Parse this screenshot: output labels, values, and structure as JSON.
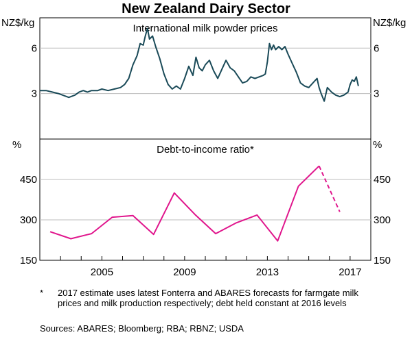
{
  "title": "New Zealand Dairy Sector",
  "chart_data": [
    {
      "type": "line",
      "title": "International milk powder prices",
      "ylabel_left": "NZ$/kg",
      "ylabel_right": "NZ$/kg",
      "xlim": [
        2002.0,
        2018.0
      ],
      "ylim": [
        0,
        8
      ],
      "yticks": [
        3,
        6
      ],
      "series": [
        {
          "name": "Milk powder price",
          "color": "#1a4a58",
          "x": [
            2002.0,
            2002.3,
            2002.6,
            2002.9,
            2003.1,
            2003.4,
            2003.7,
            2003.9,
            2004.1,
            2004.3,
            2004.5,
            2004.8,
            2005.0,
            2005.3,
            2005.6,
            2005.9,
            2006.1,
            2006.3,
            2006.5,
            2006.7,
            2006.85,
            2007.0,
            2007.1,
            2007.2,
            2007.3,
            2007.45,
            2007.6,
            2007.8,
            2008.0,
            2008.2,
            2008.4,
            2008.6,
            2008.8,
            2009.0,
            2009.2,
            2009.4,
            2009.55,
            2009.7,
            2009.85,
            2010.0,
            2010.2,
            2010.4,
            2010.6,
            2010.8,
            2011.0,
            2011.2,
            2011.4,
            2011.6,
            2011.8,
            2012.0,
            2012.2,
            2012.4,
            2012.6,
            2012.8,
            2012.9,
            2013.0,
            2013.1,
            2013.2,
            2013.3,
            2013.4,
            2013.55,
            2013.7,
            2013.85,
            2014.0,
            2014.2,
            2014.4,
            2014.6,
            2014.8,
            2015.0,
            2015.2,
            2015.4,
            2015.5,
            2015.6,
            2015.75,
            2015.9,
            2016.1,
            2016.3,
            2016.5,
            2016.7,
            2016.9,
            2017.0,
            2017.1,
            2017.2,
            2017.3,
            2017.4
          ],
          "y": [
            3.2,
            3.2,
            3.1,
            3.0,
            2.9,
            2.75,
            2.9,
            3.1,
            3.2,
            3.1,
            3.2,
            3.2,
            3.3,
            3.2,
            3.3,
            3.4,
            3.6,
            4.0,
            4.9,
            5.5,
            6.3,
            6.2,
            6.8,
            7.3,
            6.6,
            6.8,
            6.1,
            5.3,
            4.3,
            3.6,
            3.3,
            3.5,
            3.3,
            4.0,
            4.8,
            4.2,
            5.4,
            4.7,
            4.5,
            4.9,
            5.2,
            4.5,
            4.0,
            4.6,
            5.2,
            4.7,
            4.5,
            4.1,
            3.7,
            3.8,
            4.1,
            4.0,
            4.1,
            4.2,
            4.3,
            5.1,
            6.3,
            5.9,
            6.2,
            5.9,
            6.1,
            5.9,
            6.1,
            5.6,
            5.0,
            4.4,
            3.7,
            3.5,
            3.4,
            3.7,
            4.0,
            3.4,
            3.0,
            2.5,
            3.4,
            3.1,
            2.9,
            2.8,
            2.9,
            3.1,
            3.6,
            3.9,
            3.8,
            4.1,
            3.5
          ]
        }
      ]
    },
    {
      "type": "line",
      "title": "Debt-to-income ratio*",
      "ylabel_left": "%",
      "ylabel_right": "%",
      "xlim": [
        2002.0,
        2018.0
      ],
      "ylim": [
        150,
        600
      ],
      "yticks": [
        150,
        300,
        450
      ],
      "xticks": [
        2005,
        2009,
        2013,
        2017
      ],
      "series": [
        {
          "name": "Debt-to-income ratio",
          "color": "#e0158c",
          "x": [
            2002.5,
            2003.5,
            2004.5,
            2005.5,
            2006.5,
            2007.5,
            2008.5,
            2009.5,
            2010.5,
            2011.5,
            2012.5,
            2013.5,
            2014.5,
            2015.5
          ],
          "y": [
            256,
            230,
            249,
            310,
            316,
            246,
            400,
            320,
            249,
            289,
            318,
            222,
            425,
            500
          ]
        },
        {
          "name": "2017 estimate",
          "color": "#e0158c",
          "dashed": true,
          "x": [
            2015.5,
            2016.5
          ],
          "y": [
            500,
            330
          ]
        }
      ]
    }
  ],
  "footnote": {
    "marker": "*",
    "text": "2017 estimate uses latest Fonterra and ABARES forecasts for farmgate milk prices and milk production respectively; debt held constant at 2016 levels"
  },
  "sources": "Sources:   ABARES; Bloomberg; RBA; RBNZ; USDA"
}
